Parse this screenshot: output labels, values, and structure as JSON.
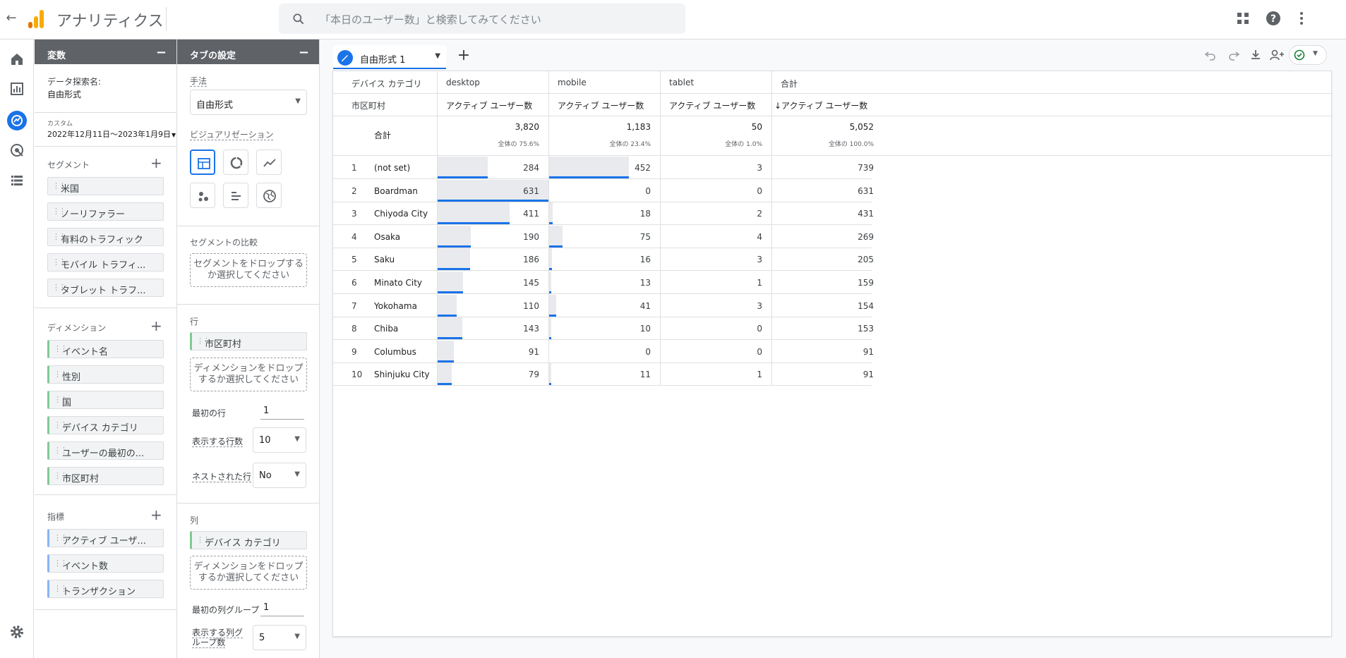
{
  "app": {
    "title": "アナリティクス",
    "search_placeholder": "「本日のユーザー数」と検索してみてください"
  },
  "variables_panel": {
    "title": "変数",
    "exploration_label": "データ探索名:",
    "exploration_name": "自由形式",
    "date_tag": "カスタム",
    "date_range": "2022年12月11日～2023年1月9日",
    "segments_label": "セグメント",
    "segments": [
      "米国",
      "ノーリファラー",
      "有料のトラフィック",
      "モバイル トラフィ...",
      "タブレット トラフ..."
    ],
    "dimensions_label": "ディメンション",
    "dimensions": [
      "イベント名",
      "性別",
      "国",
      "デバイス カテゴリ",
      "ユーザーの最初の...",
      "市区町村"
    ],
    "metrics_label": "指標",
    "metrics": [
      "アクティブ ユーザ...",
      "イベント数",
      "トランザクション"
    ]
  },
  "tab_settings_panel": {
    "title": "タブの設定",
    "technique_label": "手法",
    "technique_value": "自由形式",
    "visualization_label": "ビジュアリゼーション",
    "segment_compare_label": "セグメントの比較",
    "segment_drop": "セグメントをドロップするか選択してください",
    "rows_label": "行",
    "row_chip": "市区町村",
    "dimension_drop": "ディメンションをドロップするか選択してください",
    "first_row_label": "最初の行",
    "first_row_value": "1",
    "rows_shown_label": "表示する行数",
    "rows_shown_value": "10",
    "nested_rows_label": "ネストされた行",
    "nested_rows_value": "No",
    "columns_label": "列",
    "column_chip": "デバイス カテゴリ",
    "column_drop": "ディメンションをドロップするか選択してください",
    "first_col_group_label": "最初の列グループ",
    "first_col_group_value": "1",
    "col_groups_shown_label": "表示する列グループ数",
    "col_groups_shown_value": "5"
  },
  "main": {
    "tab_label": "自由形式 1",
    "add_tab": "+"
  },
  "table": {
    "dim_col_header": "デバイス カテゴリ",
    "row_dim_header": "市区町村",
    "col_groups": [
      "desktop",
      "mobile",
      "tablet",
      "合計"
    ],
    "metric_headers": [
      "アクティブ ユーザー数",
      "アクティブ ユーザー数",
      "アクティブ ユーザー数",
      "↓アクティブ ユーザー数"
    ],
    "total_label": "合計",
    "totals": [
      "3,820",
      "1,183",
      "50",
      "5,052"
    ],
    "total_pcts": [
      "全体の 75.6%",
      "全体の 23.4%",
      "全体の 1.0%",
      "全体の 100.0%"
    ],
    "rows": [
      {
        "idx": "1",
        "city": "(not set)",
        "desktop": "284",
        "mobile": "452",
        "tablet": "3",
        "total": "739",
        "d_frac": 0.45,
        "m_frac": 0.72
      },
      {
        "idx": "2",
        "city": "Boardman",
        "desktop": "631",
        "mobile": "0",
        "tablet": "0",
        "total": "631",
        "d_frac": 1.0,
        "m_frac": 0.0
      },
      {
        "idx": "3",
        "city": "Chiyoda City",
        "desktop": "411",
        "mobile": "18",
        "tablet": "2",
        "total": "431",
        "d_frac": 0.65,
        "m_frac": 0.03
      },
      {
        "idx": "4",
        "city": "Osaka",
        "desktop": "190",
        "mobile": "75",
        "tablet": "4",
        "total": "269",
        "d_frac": 0.3,
        "m_frac": 0.12
      },
      {
        "idx": "5",
        "city": "Saku",
        "desktop": "186",
        "mobile": "16",
        "tablet": "3",
        "total": "205",
        "d_frac": 0.29,
        "m_frac": 0.025
      },
      {
        "idx": "6",
        "city": "Minato City",
        "desktop": "145",
        "mobile": "13",
        "tablet": "1",
        "total": "159",
        "d_frac": 0.23,
        "m_frac": 0.02
      },
      {
        "idx": "7",
        "city": "Yokohama",
        "desktop": "110",
        "mobile": "41",
        "tablet": "3",
        "total": "154",
        "d_frac": 0.17,
        "m_frac": 0.065
      },
      {
        "idx": "8",
        "city": "Chiba",
        "desktop": "143",
        "mobile": "10",
        "tablet": "0",
        "total": "153",
        "d_frac": 0.225,
        "m_frac": 0.016
      },
      {
        "idx": "9",
        "city": "Columbus",
        "desktop": "91",
        "mobile": "0",
        "tablet": "0",
        "total": "91",
        "d_frac": 0.144,
        "m_frac": 0.0
      },
      {
        "idx": "10",
        "city": "Shinjuku City",
        "desktop": "79",
        "mobile": "11",
        "tablet": "1",
        "total": "91",
        "d_frac": 0.125,
        "m_frac": 0.017
      }
    ]
  },
  "colors": {
    "accent": "#1a73e8",
    "header_bg": "#5f6368",
    "logo_orange": "#f9ab00",
    "logo_dark": "#e37400"
  }
}
